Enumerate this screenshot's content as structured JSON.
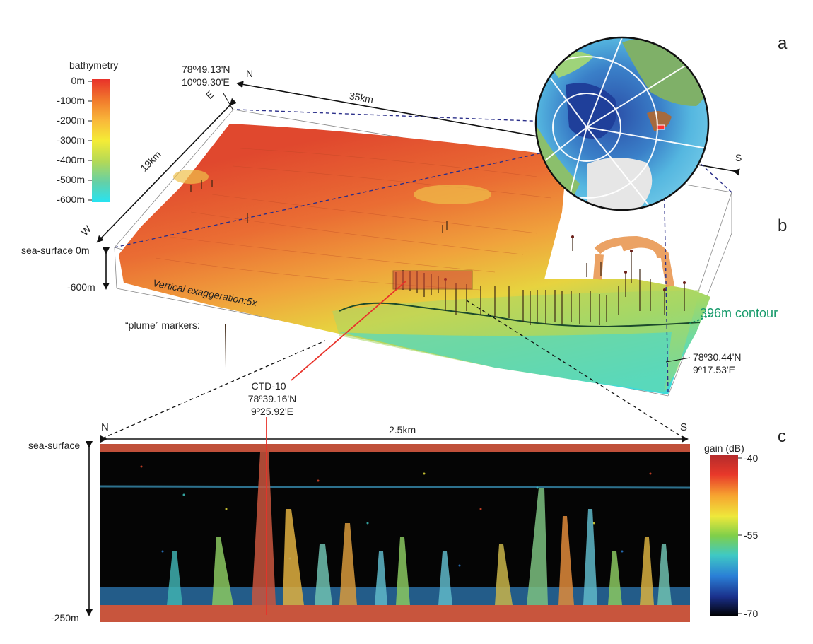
{
  "panels": {
    "a": "a",
    "b": "b",
    "c": "c"
  },
  "bathymetry_legend": {
    "title": "bathymetry",
    "ticks": [
      "0m",
      "-100m",
      "-200m",
      "-300m",
      "-400m",
      "-500m",
      "-600m"
    ],
    "colors": [
      "#e8322a",
      "#f17a2c",
      "#f9b93a",
      "#f4ec36",
      "#b3d957",
      "#63d0a8",
      "#27e3f2"
    ]
  },
  "block": {
    "corner_nw": {
      "lat": "78º49.13'N",
      "lon": "10º09.30'E"
    },
    "corner_se": {
      "lat": "78º30.44'N",
      "lon": "9º17.53'E"
    },
    "dir_n": "N",
    "dir_e": "E",
    "dir_s": "S",
    "dir_w": "W",
    "length_label": "35km",
    "width_label": "19km",
    "sea_surface_label": "sea-surface 0m",
    "depth_label": "-600m",
    "exaggeration": "Vertical exaggeration:5x",
    "plume_label": "“plume” markers:",
    "contour_label": "396m contour"
  },
  "ctd": {
    "name": "CTD-10",
    "lat": "78º39.16'N",
    "lon": "9º25.92'E"
  },
  "echogram": {
    "dir_n": "N",
    "dir_s": "S",
    "length_label": "2.5km",
    "top_label": "sea-surface",
    "bottom_label": "-250m",
    "gain_title": "gain (dB)",
    "gain_ticks": [
      "-40",
      "-55",
      "-70"
    ],
    "gain_colors": [
      "#b52b2b",
      "#e8382a",
      "#f7a430",
      "#eee83b",
      "#7fcf4a",
      "#3fc9c4",
      "#2a7fd6",
      "#1a2f8a",
      "#000000"
    ]
  }
}
